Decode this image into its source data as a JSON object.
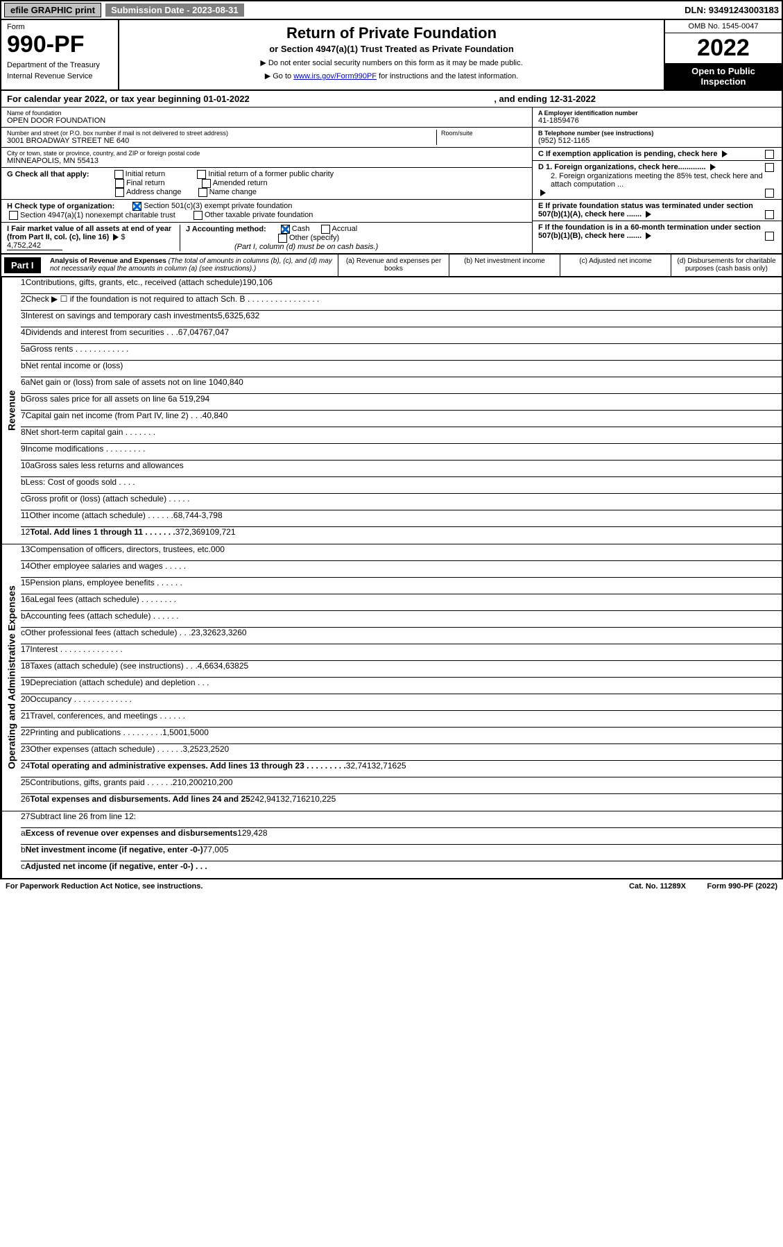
{
  "topbar": {
    "efile": "efile GRAPHIC print",
    "subdate_label": "Submission Date - 2023-08-31",
    "dln": "DLN: 93491243003183"
  },
  "header": {
    "form_label": "Form",
    "form_no": "990-PF",
    "dept": "Department of the Treasury",
    "irs": "Internal Revenue Service",
    "title": "Return of Private Foundation",
    "subtitle": "or Section 4947(a)(1) Trust Treated as Private Foundation",
    "note1": "▶ Do not enter social security numbers on this form as it may be made public.",
    "note2": "▶ Go to ",
    "note2_link": "www.irs.gov/Form990PF",
    "note2_tail": " for instructions and the latest information.",
    "omb": "OMB No. 1545-0047",
    "year": "2022",
    "open": "Open to Public Inspection"
  },
  "cal": {
    "text": "For calendar year 2022, or tax year beginning 01-01-2022",
    "end": ", and ending 12-31-2022"
  },
  "info": {
    "name_label": "Name of foundation",
    "name": "OPEN DOOR FOUNDATION",
    "addr_label": "Number and street (or P.O. box number if mail is not delivered to street address)",
    "addr": "3001 BROADWAY STREET NE 640",
    "room_label": "Room/suite",
    "city_label": "City or town, state or province, country, and ZIP or foreign postal code",
    "city": "MINNEAPOLIS, MN  55413",
    "ein_label": "A Employer identification number",
    "ein": "41-1859476",
    "tel_label": "B Telephone number (see instructions)",
    "tel": "(952) 512-1165",
    "c": "C If exemption application is pending, check here",
    "d1": "D 1. Foreign organizations, check here.............",
    "d2": "2. Foreign organizations meeting the 85% test, check here and attach computation ...",
    "e": "E  If private foundation status was terminated under section 507(b)(1)(A), check here .......",
    "f": "F  If the foundation is in a 60-month termination under section 507(b)(1)(B), check here ......."
  },
  "g": {
    "label": "G Check all that apply:",
    "opts": [
      "Initial return",
      "Final return",
      "Address change",
      "Initial return of a former public charity",
      "Amended return",
      "Name change"
    ]
  },
  "h": {
    "label": "H Check type of organization:",
    "opt1": "Section 501(c)(3) exempt private foundation",
    "opt2": "Section 4947(a)(1) nonexempt charitable trust",
    "opt3": "Other taxable private foundation"
  },
  "i": {
    "label": "I Fair market value of all assets at end of year (from Part II, col. (c), line 16)",
    "val": "4,752,242"
  },
  "j": {
    "label": "J Accounting method:",
    "cash": "Cash",
    "accrual": "Accrual",
    "other": "Other (specify)",
    "note": "(Part I, column (d) must be on cash basis.)"
  },
  "part1": {
    "label": "Part I",
    "title": "Analysis of Revenue and Expenses",
    "note": "(The total of amounts in columns (b), (c), and (d) may not necessarily equal the amounts in column (a) (see instructions).)",
    "col_a": "(a)   Revenue and expenses per books",
    "col_b": "(b)   Net investment income",
    "col_c": "(c)   Adjusted net income",
    "col_d": "(d)  Disbursements for charitable purposes (cash basis only)"
  },
  "side": {
    "rev": "Revenue",
    "exp": "Operating and Administrative Expenses"
  },
  "rows": [
    {
      "n": "1",
      "d": "Contributions, gifts, grants, etc., received (attach schedule)",
      "a": "190,106",
      "b": "",
      "c": "g",
      "dd": "g"
    },
    {
      "n": "2",
      "d": "Check ▶ ☐ if the foundation is not required to attach Sch. B   .   .   .   .   .   .   .   .   .   .   .   .   .   .   .   .",
      "a": "g",
      "b": "g",
      "c": "g",
      "dd": "g"
    },
    {
      "n": "3",
      "d": "Interest on savings and temporary cash investments",
      "a": "5,632",
      "b": "5,632",
      "c": "",
      "dd": "g"
    },
    {
      "n": "4",
      "d": "Dividends and interest from securities   .   .   .",
      "a": "67,047",
      "b": "67,047",
      "c": "",
      "dd": "g"
    },
    {
      "n": "5a",
      "d": "Gross rents   .   .   .   .   .   .   .   .   .   .   .   .",
      "a": "",
      "b": "",
      "c": "",
      "dd": "g"
    },
    {
      "n": "b",
      "d": "Net rental income or (loss)  ",
      "a": "g",
      "b": "g",
      "c": "g",
      "dd": "g"
    },
    {
      "n": "6a",
      "d": "Net gain or (loss) from sale of assets not on line 10",
      "a": "40,840",
      "b": "g",
      "c": "g",
      "dd": "g"
    },
    {
      "n": "b",
      "d": "Gross sales price for all assets on line 6a               519,294",
      "a": "g",
      "b": "g",
      "c": "g",
      "dd": "g"
    },
    {
      "n": "7",
      "d": "Capital gain net income (from Part IV, line 2)   .   .   .",
      "a": "g",
      "b": "40,840",
      "c": "g",
      "dd": "g"
    },
    {
      "n": "8",
      "d": "Net short-term capital gain   .   .   .   .   .   .   .",
      "a": "g",
      "b": "g",
      "c": "",
      "dd": "g"
    },
    {
      "n": "9",
      "d": "Income modifications  .   .   .   .   .   .   .   .   .",
      "a": "g",
      "b": "g",
      "c": "",
      "dd": "g"
    },
    {
      "n": "10a",
      "d": "Gross sales less returns and allowances",
      "a": "g",
      "b": "g",
      "c": "g",
      "dd": "g"
    },
    {
      "n": "b",
      "d": "Less: Cost of goods sold   .   .   .   .",
      "a": "g",
      "b": "g",
      "c": "g",
      "dd": "g"
    },
    {
      "n": "c",
      "d": "Gross profit or (loss) (attach schedule)   .   .   .   .   .",
      "a": "",
      "b": "g",
      "c": "",
      "dd": "g"
    },
    {
      "n": "11",
      "d": "Other income (attach schedule)   .   .   .   .   .   .",
      "a": "68,744",
      "b": "-3,798",
      "c": "",
      "dd": "g"
    },
    {
      "n": "12",
      "d": "Total. Add lines 1 through 11   .   .   .   .   .   .   .",
      "a": "372,369",
      "b": "109,721",
      "c": "",
      "dd": "g",
      "bold": true
    }
  ],
  "rows2": [
    {
      "n": "13",
      "d": "Compensation of officers, directors, trustees, etc.",
      "a": "0",
      "b": "0",
      "c": "",
      "dd": "0"
    },
    {
      "n": "14",
      "d": "Other employee salaries and wages   .   .   .   .   .",
      "a": "",
      "b": "",
      "c": "",
      "dd": ""
    },
    {
      "n": "15",
      "d": "Pension plans, employee benefits  .   .   .   .   .   .",
      "a": "",
      "b": "",
      "c": "",
      "dd": ""
    },
    {
      "n": "16a",
      "d": "Legal fees (attach schedule)  .   .   .   .   .   .   .   .",
      "a": "",
      "b": "",
      "c": "",
      "dd": ""
    },
    {
      "n": "b",
      "d": "Accounting fees (attach schedule)  .   .   .   .   .   .",
      "a": "",
      "b": "",
      "c": "",
      "dd": ""
    },
    {
      "n": "c",
      "d": "Other professional fees (attach schedule)   .   .   .",
      "a": "23,326",
      "b": "23,326",
      "c": "",
      "dd": "0"
    },
    {
      "n": "17",
      "d": "Interest  .   .   .   .   .   .   .   .   .   .   .   .   .   .",
      "a": "",
      "b": "",
      "c": "",
      "dd": ""
    },
    {
      "n": "18",
      "d": "Taxes (attach schedule) (see instructions)   .   .   .",
      "a": "4,663",
      "b": "4,638",
      "c": "",
      "dd": "25"
    },
    {
      "n": "19",
      "d": "Depreciation (attach schedule) and depletion   .   .   .",
      "a": "",
      "b": "",
      "c": "",
      "dd": "g"
    },
    {
      "n": "20",
      "d": "Occupancy  .   .   .   .   .   .   .   .   .   .   .   .   .",
      "a": "",
      "b": "",
      "c": "",
      "dd": ""
    },
    {
      "n": "21",
      "d": "Travel, conferences, and meetings .   .   .   .   .   .",
      "a": "",
      "b": "",
      "c": "",
      "dd": ""
    },
    {
      "n": "22",
      "d": "Printing and publications  .   .   .   .   .   .   .   .   .",
      "a": "1,500",
      "b": "1,500",
      "c": "",
      "dd": "0"
    },
    {
      "n": "23",
      "d": "Other expenses (attach schedule)  .   .   .   .   .   .",
      "a": "3,252",
      "b": "3,252",
      "c": "",
      "dd": "0"
    },
    {
      "n": "24",
      "d": "Total operating and administrative expenses. Add lines 13 through 23   .   .   .   .   .   .   .   .   .",
      "a": "32,741",
      "b": "32,716",
      "c": "",
      "dd": "25",
      "bold": true
    },
    {
      "n": "25",
      "d": "Contributions, gifts, grants paid    .   .   .   .   .   .",
      "a": "210,200",
      "b": "g",
      "c": "g",
      "dd": "210,200"
    },
    {
      "n": "26",
      "d": "Total expenses and disbursements. Add lines 24 and 25",
      "a": "242,941",
      "b": "32,716",
      "c": "",
      "dd": "210,225",
      "bold": true
    }
  ],
  "rows3": [
    {
      "n": "27",
      "d": "Subtract line 26 from line 12:",
      "a": "g",
      "b": "g",
      "c": "g",
      "dd": "g"
    },
    {
      "n": "a",
      "d": "Excess of revenue over expenses and disbursements",
      "a": "129,428",
      "b": "g",
      "c": "g",
      "dd": "g",
      "bold": true
    },
    {
      "n": "b",
      "d": "Net investment income (if negative, enter -0-)",
      "a": "g",
      "b": "77,005",
      "c": "g",
      "dd": "g",
      "bold": true
    },
    {
      "n": "c",
      "d": "Adjusted net income (if negative, enter -0-)   .   .   .",
      "a": "g",
      "b": "g",
      "c": "",
      "dd": "g",
      "bold": true
    }
  ],
  "footer": {
    "left": "For Paperwork Reduction Act Notice, see instructions.",
    "mid": "Cat. No. 11289X",
    "right": "Form 990-PF (2022)"
  }
}
